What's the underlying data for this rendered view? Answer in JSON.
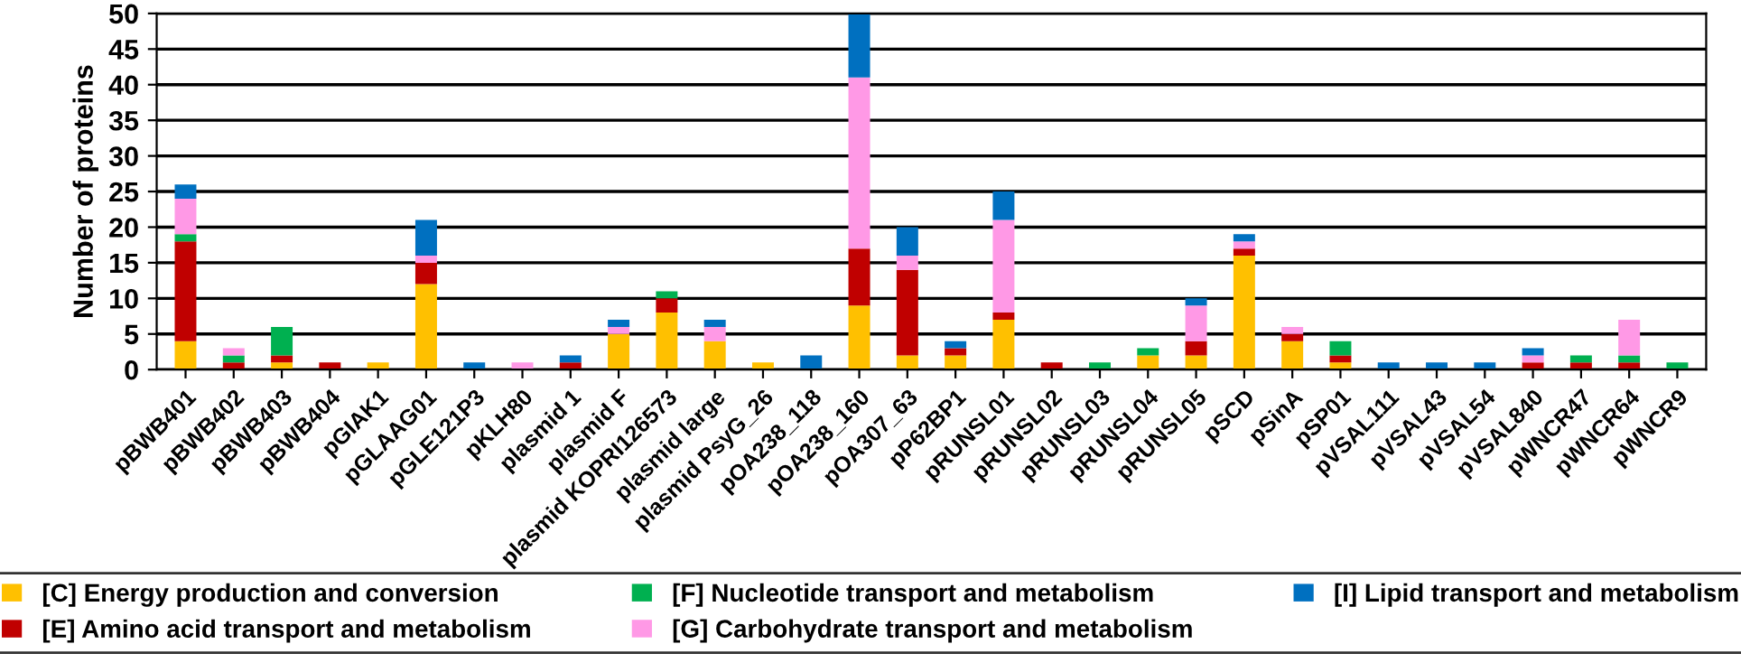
{
  "chart_data": {
    "type": "bar",
    "stacked": true,
    "ylabel": "Number of proteins",
    "categories": [
      "pBWB401",
      "pBWB402",
      "pBWB403",
      "pBWB404",
      "pGIAK1",
      "pGLAAG01",
      "pGLE121P3",
      "pKLH80",
      "plasmid 1",
      "plasmid F",
      "plasmid KOPRI126573",
      "plasmid large",
      "plasmid PsyG_26",
      "pOA238_118",
      "pOA238_160",
      "pOA307_63",
      "pP62BP1",
      "pRUNSL01",
      "pRUNSL02",
      "pRUNSL03",
      "pRUNSL04",
      "pRUNSL05",
      "pSCD",
      "pSinA",
      "pSP01",
      "pVSAL111",
      "pVSAL43",
      "pVSAL54",
      "pVSAL840",
      "pWNCR47",
      "pWNCR64",
      "pWNCR9"
    ],
    "series": [
      {
        "name": "[C] Energy production and conversion",
        "color": "#ffc000",
        "values": [
          4,
          0,
          1,
          0,
          1,
          12,
          0,
          0,
          0,
          5,
          8,
          4,
          1,
          0,
          9,
          2,
          2,
          7,
          0,
          0,
          2,
          2,
          16,
          4,
          1,
          0,
          0,
          0,
          0,
          0,
          0,
          0
        ]
      },
      {
        "name": "[E] Amino acid transport and metabolism",
        "color": "#c00000",
        "values": [
          14,
          1,
          1,
          1,
          0,
          3,
          0,
          0,
          1,
          0,
          2,
          0,
          0,
          0,
          8,
          12,
          1,
          1,
          1,
          0,
          0,
          2,
          1,
          1,
          1,
          0,
          0,
          0,
          1,
          1,
          1,
          0
        ]
      },
      {
        "name": "[F] Nucleotide transport and metabolism",
        "color": "#00b050",
        "values": [
          1,
          1,
          4,
          0,
          0,
          0,
          0,
          0,
          0,
          0,
          1,
          0,
          0,
          0,
          0,
          0,
          0,
          0,
          0,
          1,
          1,
          0,
          0,
          0,
          2,
          0,
          0,
          0,
          0,
          1,
          1,
          1
        ]
      },
      {
        "name": "[G] Carbohydrate transport and metabolism",
        "color": "#ff99e6",
        "values": [
          5,
          1,
          0,
          0,
          0,
          1,
          0,
          1,
          0,
          1,
          0,
          2,
          0,
          0,
          24,
          2,
          0,
          13,
          0,
          0,
          0,
          5,
          1,
          1,
          0,
          0,
          0,
          0,
          1,
          0,
          5,
          0
        ]
      },
      {
        "name": "[I] Lipid transport and metabolism",
        "color": "#0070c0",
        "values": [
          2,
          0,
          0,
          0,
          0,
          5,
          1,
          0,
          1,
          1,
          0,
          1,
          0,
          2,
          9,
          4,
          1,
          4,
          0,
          0,
          0,
          1,
          1,
          0,
          0,
          1,
          1,
          1,
          1,
          0,
          0,
          0
        ]
      }
    ],
    "ylim": [
      0,
      50
    ],
    "yticks": [
      0,
      5,
      10,
      15,
      20,
      25,
      30,
      35,
      40,
      45,
      50
    ],
    "grid": "y",
    "legend": "bottom"
  }
}
